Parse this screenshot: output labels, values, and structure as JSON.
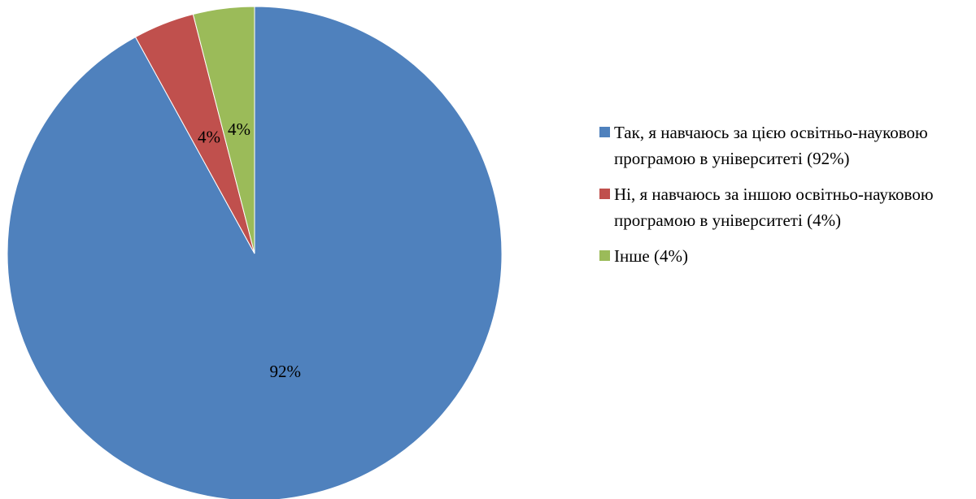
{
  "chart_data": {
    "type": "pie",
    "series": [
      {
        "name": "Так, я навчаюсь за цією освітньо-науковою програмою в університеті (92%)",
        "color": "#4f81bd",
        "values": [
          92
        ],
        "value_labels": [
          "92%"
        ]
      },
      {
        "name": "Ні, я навчаюсь за іншою освітньо-науковою програмою в університеті (4%)",
        "color": "#c0504d",
        "values": [
          4
        ],
        "value_labels": [
          "4%"
        ]
      },
      {
        "name": "Інше (4%)",
        "color": "#9bbb59",
        "values": [
          4
        ],
        "value_labels": [
          "4%"
        ]
      }
    ],
    "legend": "right"
  }
}
